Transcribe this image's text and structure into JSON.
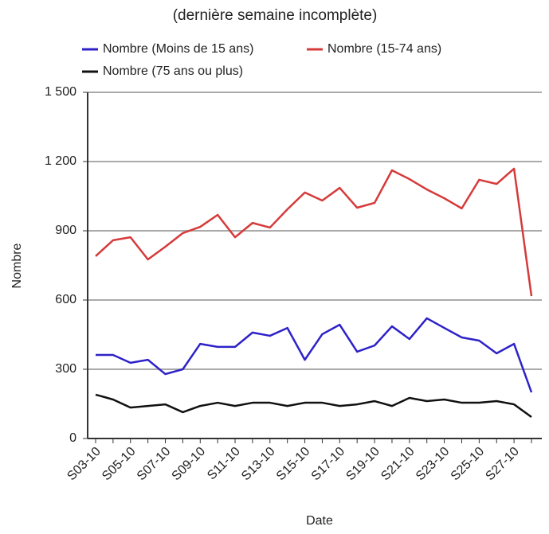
{
  "chart_data": {
    "type": "line",
    "title": "(dernière semaine incomplète)",
    "x_label": "Date",
    "y_label": "Nombre",
    "categories": [
      "S03-10",
      null,
      "S05-10",
      null,
      "S07-10",
      null,
      "S09-10",
      null,
      "S11-10",
      null,
      "S13-10",
      null,
      "S15-10",
      null,
      "S17-10",
      null,
      "S19-10",
      null,
      "S21-10",
      null,
      "S23-10",
      null,
      "S25-10",
      null,
      "S27-10",
      null
    ],
    "series": [
      {
        "name": "Nombre (Moins de 15 ans)",
        "color": "#2e22c8",
        "values": [
          362,
          362,
          328,
          341,
          279,
          300,
          410,
          397,
          397,
          459,
          445,
          479,
          341,
          452,
          493,
          376,
          403,
          486,
          431,
          521,
          479,
          438,
          424,
          369,
          410,
          200
        ]
      },
      {
        "name": "Nombre (15-74 ans)",
        "color": "#d63a3a",
        "values": [
          790,
          859,
          872,
          776,
          831,
          890,
          917,
          969,
          872,
          934,
          914,
          993,
          1066,
          1031,
          1086,
          1000,
          1021,
          1162,
          1124,
          1079,
          1041,
          997,
          1121,
          1103,
          1169,
          617
        ]
      },
      {
        "name": "Nombre (75 ans ou plus)",
        "color": "#111111",
        "values": [
          190,
          169,
          134,
          141,
          148,
          114,
          141,
          155,
          141,
          155,
          155,
          141,
          155,
          155,
          141,
          148,
          162,
          141,
          176,
          162,
          169,
          155,
          155,
          162,
          148,
          93
        ]
      }
    ],
    "ylim": [
      0,
      1500
    ],
    "yticks": [
      0,
      300,
      600,
      900,
      {
        "value": 1200,
        "label": "1 200"
      },
      {
        "value": 1500,
        "label": "1 500"
      }
    ],
    "grid": true
  }
}
